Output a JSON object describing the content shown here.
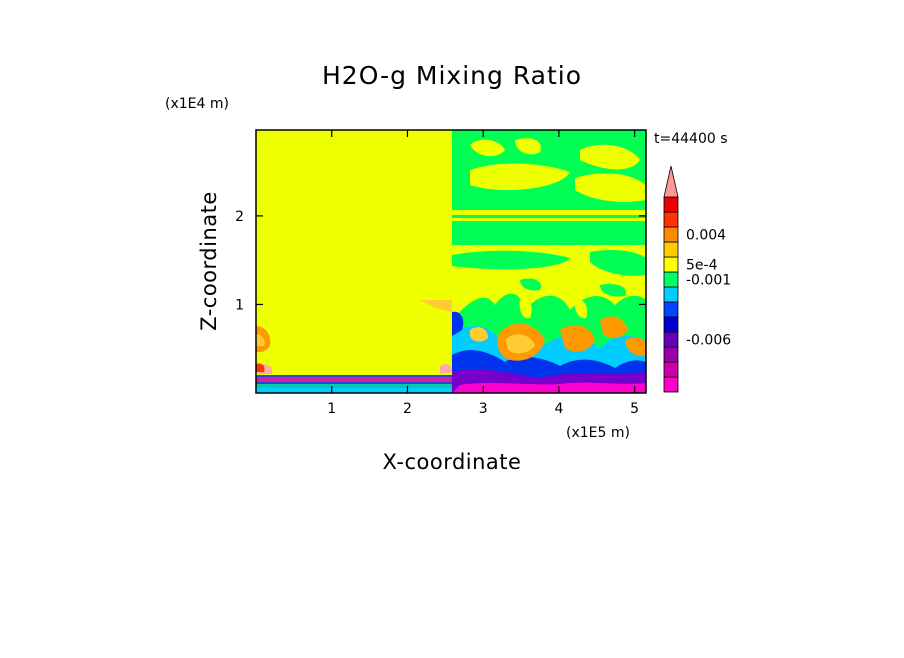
{
  "chart_data": {
    "type": "heatmap",
    "title": "H2O-g Mixing Ratio",
    "xlabel": "X-coordinate",
    "ylabel": "Z-coordinate",
    "x_unit": "(x1E5 m)",
    "y_unit": "(x1E4 m)",
    "time_label": "t=44400 s",
    "xlim": [
      0,
      5.15
    ],
    "ylim": [
      0,
      2.97
    ],
    "x_ticks": [
      {
        "value": 1,
        "label": "1"
      },
      {
        "value": 2,
        "label": "2"
      },
      {
        "value": 3,
        "label": "3"
      },
      {
        "value": 4,
        "label": "4"
      },
      {
        "value": 5,
        "label": "5"
      }
    ],
    "y_ticks": [
      {
        "value": 1,
        "label": "1"
      },
      {
        "value": 2,
        "label": "2"
      }
    ],
    "colorbar": {
      "colors": [
        "#ff00cc",
        "#cc00aa",
        "#9900aa",
        "#6600bb",
        "#0000cc",
        "#0044ff",
        "#00ccff",
        "#00ff66",
        "#ffff00",
        "#ffcc00",
        "#ff8800",
        "#ff3300",
        "#ee0000",
        "#ff9999"
      ],
      "labels": [
        {
          "text": "0.004",
          "level": 0.004
        },
        {
          "text": "5e-4",
          "level": 0.0005
        },
        {
          "text": "-0.001",
          "level": -0.001
        },
        {
          "text": "-0.006",
          "level": -0.006
        }
      ]
    },
    "field_colors": {
      "background": "#eeff00",
      "green": "#00ff55",
      "cyan": "#00ccff",
      "blue": "#0033ee",
      "purple": "#7700cc",
      "magenta": "#ff00cc",
      "orange": "#ff9900",
      "light_orange": "#ffcc33",
      "red": "#ff3300",
      "pink": "#ffaaaa"
    }
  }
}
